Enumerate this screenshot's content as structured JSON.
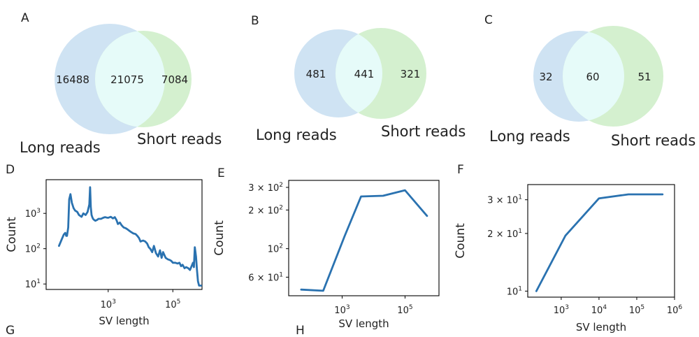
{
  "colors": {
    "long_reads": "#cfe3f3",
    "short_reads": "#d4f0cf",
    "overlap": "#e6fbf9",
    "line": "#2a72b0"
  },
  "panel_letters": [
    "A",
    "B",
    "C",
    "D",
    "E",
    "F",
    "G",
    "H"
  ],
  "chart_data": [
    {
      "panel": "A",
      "type": "venn",
      "sets": [
        "Long reads",
        "Short reads"
      ],
      "values": {
        "long_only": "16488",
        "both": "21075",
        "short_only": "7084"
      }
    },
    {
      "panel": "B",
      "type": "venn",
      "sets": [
        "Long reads",
        "Short reads"
      ],
      "values": {
        "long_only": "481",
        "both": "441",
        "short_only": "321"
      }
    },
    {
      "panel": "C",
      "type": "venn",
      "sets": [
        "Long reads",
        "Short reads"
      ],
      "values": {
        "long_only": "32",
        "both": "60",
        "short_only": "51"
      }
    },
    {
      "panel": "D",
      "type": "line",
      "xlabel": "SV length",
      "ylabel": "Count",
      "xscale": "log",
      "yscale": "log",
      "xlim": [
        12,
        800000
      ],
      "ylim": [
        7,
        9000
      ],
      "xticks": [
        {
          "v": 1000,
          "label": "10",
          "exp": "3"
        },
        {
          "v": 100000,
          "label": "10",
          "exp": "5"
        }
      ],
      "yticks": [
        {
          "v": 10,
          "label": "10",
          "exp": "1"
        },
        {
          "v": 100,
          "label": "10",
          "exp": "2"
        },
        {
          "v": 1000,
          "label": "10",
          "exp": "3"
        }
      ],
      "series": [
        {
          "x": [
            30,
            36,
            42,
            47,
            50,
            53,
            58,
            62,
            68,
            75,
            85,
            95,
            110,
            125,
            150,
            170,
            200,
            230,
            260,
            275,
            290,
            305,
            320,
            340,
            370,
            400,
            450,
            500,
            600,
            700,
            800,
            900,
            1000,
            1200,
            1400,
            1600,
            1800,
            2000,
            2300,
            2600,
            3000,
            3500,
            4000,
            5000,
            6000,
            7000,
            8000,
            9000,
            10000,
            12000,
            14000,
            16000,
            18000,
            20000,
            23000,
            26000,
            30000,
            35000,
            40000,
            45000,
            50000,
            60000,
            70000,
            80000,
            90000,
            100000,
            120000,
            140000,
            160000,
            180000,
            200000,
            230000,
            260000,
            300000,
            340000,
            380000,
            420000,
            450000,
            480000,
            520000,
            560000,
            600000,
            650000,
            700000,
            750000
          ],
          "y": [
            120,
            180,
            250,
            280,
            230,
            230,
            400,
            2500,
            3500,
            2000,
            1400,
            1200,
            1100,
            900,
            800,
            1000,
            900,
            1100,
            1800,
            5500,
            1500,
            900,
            800,
            700,
            650,
            620,
            650,
            700,
            700,
            750,
            780,
            760,
            750,
            800,
            720,
            780,
            650,
            500,
            550,
            460,
            400,
            380,
            350,
            300,
            270,
            260,
            230,
            200,
            160,
            170,
            160,
            140,
            110,
            100,
            80,
            120,
            75,
            60,
            90,
            55,
            80,
            55,
            50,
            48,
            45,
            40,
            40,
            38,
            40,
            32,
            35,
            28,
            30,
            28,
            25,
            32,
            40,
            30,
            110,
            60,
            25,
            12,
            9,
            9,
            9
          ]
        }
      ]
    },
    {
      "panel": "E",
      "type": "line",
      "xlabel": "SV length",
      "ylabel": "Count",
      "xscale": "log",
      "yscale": "log",
      "xlim": [
        20,
        1200000
      ],
      "ylim": [
        43,
        340
      ],
      "xticks": [
        {
          "v": 1000,
          "label": "10",
          "exp": "3"
        },
        {
          "v": 100000,
          "label": "10",
          "exp": "5"
        }
      ],
      "yticks": [
        {
          "v": 60,
          "label": "6 × 10",
          "exp": "1"
        },
        {
          "v": 100,
          "label": "10",
          "exp": "2"
        },
        {
          "v": 200,
          "label": "2 × 10",
          "exp": "2"
        },
        {
          "v": 300,
          "label": "3 × 10",
          "exp": "2"
        }
      ],
      "series": [
        {
          "x": [
            50,
            250,
            1200,
            4000,
            20000,
            100000,
            500000
          ],
          "y": [
            48,
            47,
            125,
            255,
            258,
            285,
            180
          ]
        }
      ]
    },
    {
      "panel": "F",
      "type": "line",
      "xlabel": "SV length",
      "ylabel": "Count",
      "xscale": "log",
      "yscale": "log",
      "xlim": [
        130,
        1000000
      ],
      "ylim": [
        9.3,
        36
      ],
      "xticks": [
        {
          "v": 1000,
          "label": "10",
          "exp": "3"
        },
        {
          "v": 10000,
          "label": "10",
          "exp": "4"
        },
        {
          "v": 100000,
          "label": "10",
          "exp": "5"
        },
        {
          "v": 1000000,
          "label": "10",
          "exp": "6"
        }
      ],
      "yticks": [
        {
          "v": 10,
          "label": "10",
          "exp": "1"
        },
        {
          "v": 20,
          "label": "2 × 10",
          "exp": "1"
        },
        {
          "v": 30,
          "label": "3 × 10",
          "exp": "1"
        }
      ],
      "series": [
        {
          "x": [
            220,
            1300,
            10000,
            60000,
            480000
          ],
          "y": [
            10,
            19.5,
            30.5,
            32,
            32
          ]
        }
      ]
    }
  ]
}
